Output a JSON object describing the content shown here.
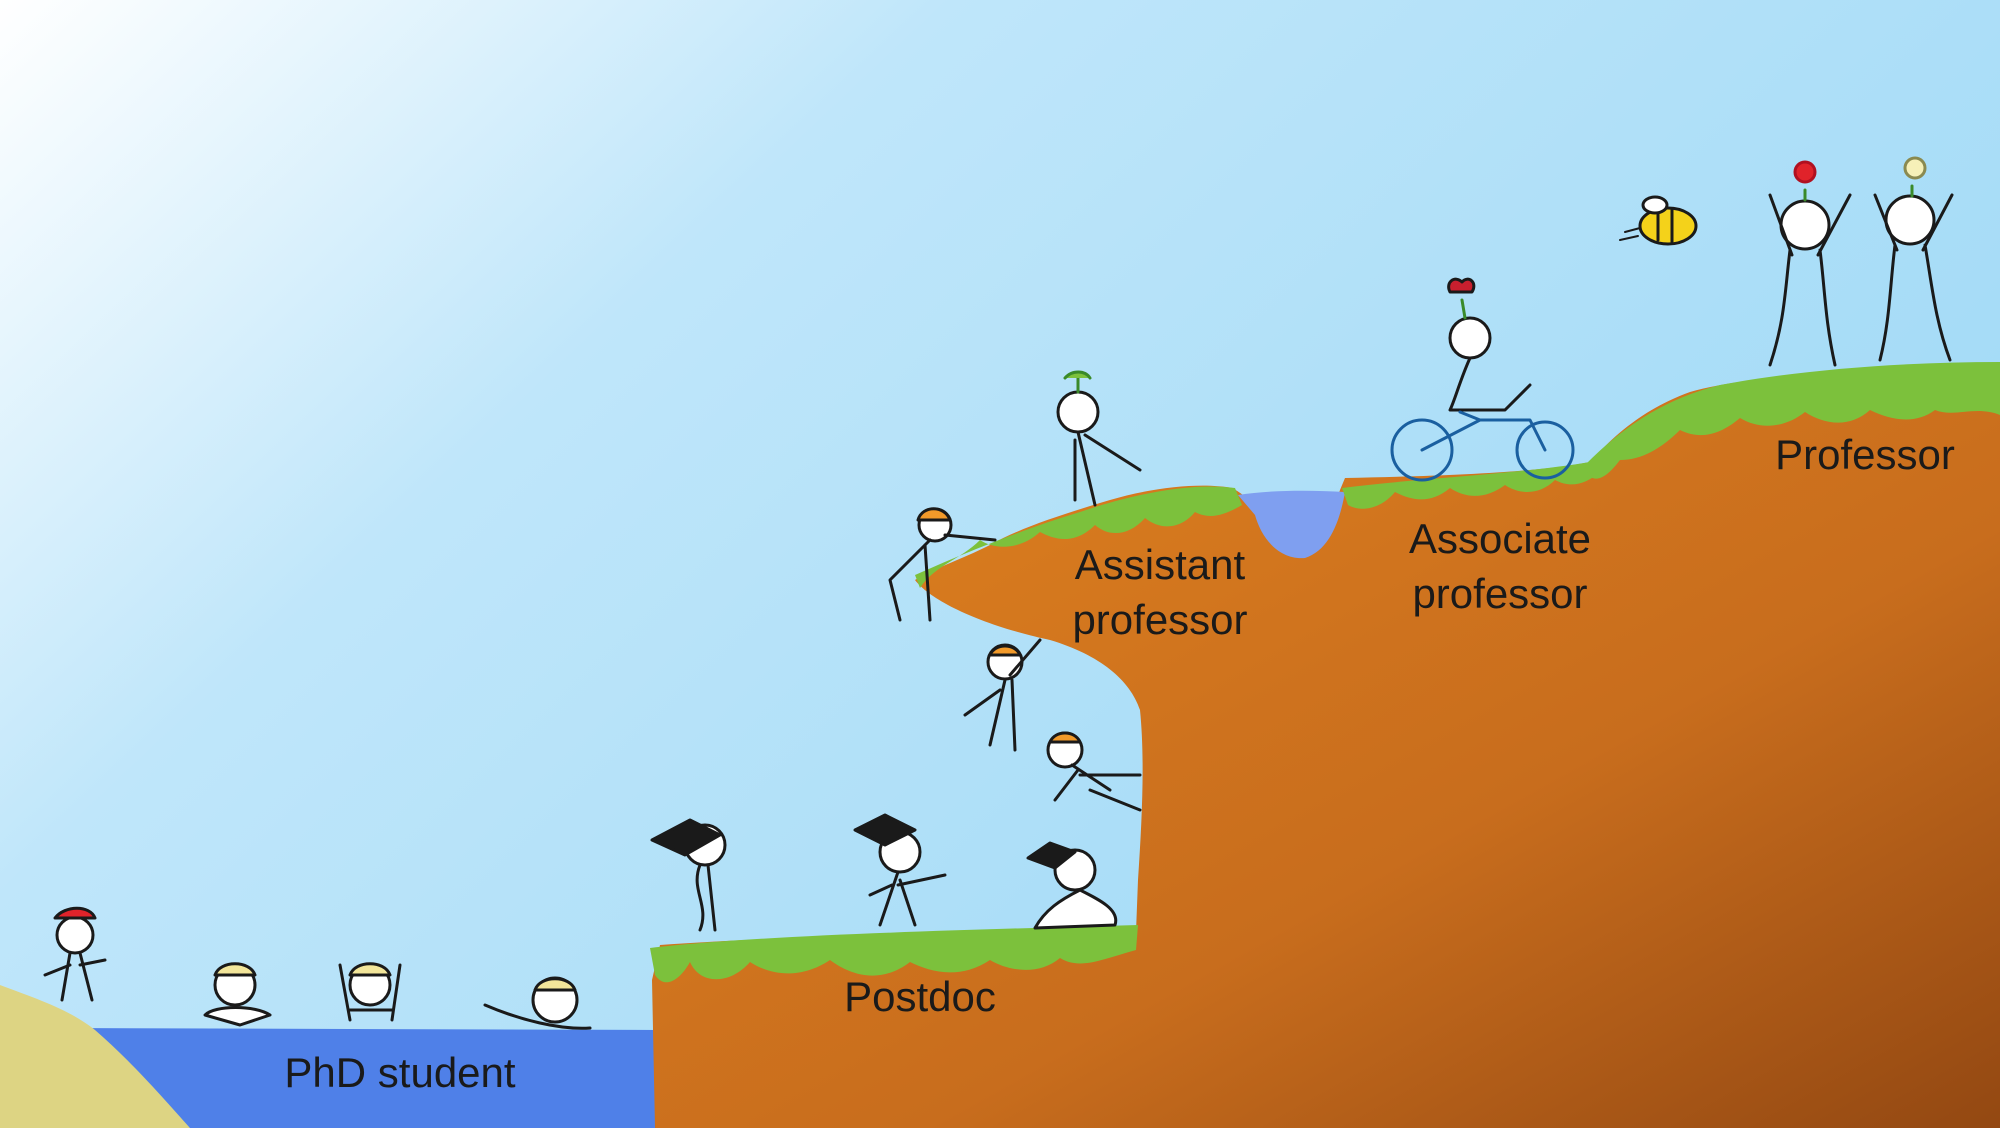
{
  "stages": {
    "phd": "PhD student",
    "postdoc": "Postdoc",
    "assistant": "Assistant\nprofessor",
    "associate": "Associate\nprofessor",
    "professor": "Professor"
  },
  "colors": {
    "sky_top": "#ffffff",
    "sky": "#a8ddf7",
    "water": "#4f80e8",
    "pool": "#7f9ff0",
    "sand": "#ddd483",
    "cliff": "#d8781f",
    "cliff_dark": "#9e4e14",
    "grass": "#7cc13c",
    "grass_dark": "#5c9a2a"
  }
}
